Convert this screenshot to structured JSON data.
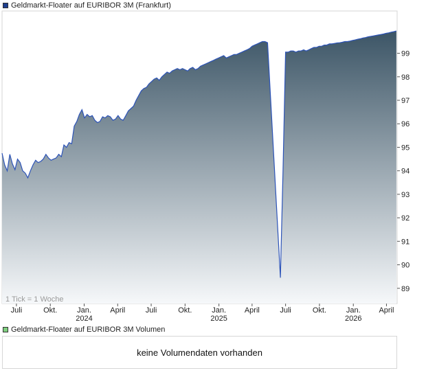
{
  "chart_data": {
    "type": "area",
    "title": "Geldmarkt-Floater auf EURIBOR 3M (Frankfurt)",
    "legend_color": "#1f3f8f",
    "line_color": "#2c53b8",
    "fill_top_color": "#3c5566",
    "fill_bottom_color": "#f6f8fa",
    "ylim": [
      88.35,
      100.8
    ],
    "y_ticks": [
      89,
      90,
      91,
      92,
      93,
      94,
      95,
      96,
      97,
      98,
      99
    ],
    "y_tick_labels": [
      "89",
      "90",
      "91",
      "92",
      "93",
      "94",
      "95",
      "96",
      "97",
      "98",
      "99"
    ],
    "xlim": [
      "2023-05-23",
      "2026-04-30"
    ],
    "x_ticks": [
      {
        "date": "2023-07-01",
        "label": "Juli",
        "year": ""
      },
      {
        "date": "2023-10-01",
        "label": "Okt.",
        "year": ""
      },
      {
        "date": "2024-01-01",
        "label": "Jan.",
        "year": "2024"
      },
      {
        "date": "2024-04-01",
        "label": "April",
        "year": ""
      },
      {
        "date": "2024-07-01",
        "label": "Juli",
        "year": ""
      },
      {
        "date": "2024-10-01",
        "label": "Okt.",
        "year": ""
      },
      {
        "date": "2025-01-01",
        "label": "Jan.",
        "year": "2025"
      },
      {
        "date": "2025-04-01",
        "label": "April",
        "year": ""
      },
      {
        "date": "2025-07-01",
        "label": "Juli",
        "year": ""
      },
      {
        "date": "2025-10-01",
        "label": "Okt.",
        "year": ""
      },
      {
        "date": "2026-01-01",
        "label": "Jan.",
        "year": "2026"
      },
      {
        "date": "2026-04-01",
        "label": "April",
        "year": ""
      }
    ],
    "note": "1 Tick = 1 Woche",
    "series": [
      {
        "name": "Geldmarkt-Floater auf EURIBOR 3M (Frankfurt)",
        "points": [
          [
            "2023-05-23",
            94.75
          ],
          [
            "2023-05-30",
            94.25
          ],
          [
            "2023-06-06",
            94.0
          ],
          [
            "2023-06-13",
            94.7
          ],
          [
            "2023-06-20",
            94.3
          ],
          [
            "2023-06-27",
            94.05
          ],
          [
            "2023-07-04",
            94.5
          ],
          [
            "2023-07-11",
            94.35
          ],
          [
            "2023-07-18",
            94.0
          ],
          [
            "2023-07-25",
            93.9
          ],
          [
            "2023-08-01",
            93.7
          ],
          [
            "2023-08-08",
            94.0
          ],
          [
            "2023-08-15",
            94.25
          ],
          [
            "2023-08-22",
            94.45
          ],
          [
            "2023-08-29",
            94.35
          ],
          [
            "2023-09-05",
            94.4
          ],
          [
            "2023-09-12",
            94.5
          ],
          [
            "2023-09-19",
            94.7
          ],
          [
            "2023-09-26",
            94.55
          ],
          [
            "2023-10-03",
            94.45
          ],
          [
            "2023-10-10",
            94.5
          ],
          [
            "2023-10-17",
            94.55
          ],
          [
            "2023-10-24",
            94.7
          ],
          [
            "2023-10-31",
            94.6
          ],
          [
            "2023-11-07",
            95.1
          ],
          [
            "2023-11-14",
            95.0
          ],
          [
            "2023-11-21",
            95.2
          ],
          [
            "2023-11-28",
            95.15
          ],
          [
            "2023-12-05",
            95.9
          ],
          [
            "2023-12-12",
            96.1
          ],
          [
            "2023-12-19",
            96.4
          ],
          [
            "2023-12-26",
            96.6
          ],
          [
            "2024-01-02",
            96.25
          ],
          [
            "2024-01-09",
            96.4
          ],
          [
            "2024-01-16",
            96.3
          ],
          [
            "2024-01-23",
            96.35
          ],
          [
            "2024-01-30",
            96.15
          ],
          [
            "2024-02-06",
            96.05
          ],
          [
            "2024-02-13",
            96.1
          ],
          [
            "2024-02-20",
            96.3
          ],
          [
            "2024-02-27",
            96.25
          ],
          [
            "2024-03-05",
            96.35
          ],
          [
            "2024-03-12",
            96.3
          ],
          [
            "2024-03-19",
            96.15
          ],
          [
            "2024-03-26",
            96.2
          ],
          [
            "2024-04-02",
            96.35
          ],
          [
            "2024-04-09",
            96.2
          ],
          [
            "2024-04-16",
            96.15
          ],
          [
            "2024-04-23",
            96.35
          ],
          [
            "2024-04-30",
            96.55
          ],
          [
            "2024-05-07",
            96.65
          ],
          [
            "2024-05-14",
            96.75
          ],
          [
            "2024-05-21",
            97.0
          ],
          [
            "2024-05-28",
            97.2
          ],
          [
            "2024-06-04",
            97.4
          ],
          [
            "2024-06-11",
            97.5
          ],
          [
            "2024-06-18",
            97.55
          ],
          [
            "2024-06-25",
            97.7
          ],
          [
            "2024-07-02",
            97.8
          ],
          [
            "2024-07-09",
            97.9
          ],
          [
            "2024-07-16",
            97.95
          ],
          [
            "2024-07-23",
            97.85
          ],
          [
            "2024-07-30",
            98.0
          ],
          [
            "2024-08-06",
            98.1
          ],
          [
            "2024-08-13",
            98.2
          ],
          [
            "2024-08-20",
            98.15
          ],
          [
            "2024-08-27",
            98.25
          ],
          [
            "2024-09-03",
            98.3
          ],
          [
            "2024-09-10",
            98.35
          ],
          [
            "2024-09-17",
            98.3
          ],
          [
            "2024-09-24",
            98.35
          ],
          [
            "2024-10-01",
            98.3
          ],
          [
            "2024-10-08",
            98.25
          ],
          [
            "2024-10-15",
            98.35
          ],
          [
            "2024-10-22",
            98.4
          ],
          [
            "2024-10-29",
            98.3
          ],
          [
            "2024-11-05",
            98.35
          ],
          [
            "2024-11-12",
            98.45
          ],
          [
            "2024-11-19",
            98.5
          ],
          [
            "2024-11-26",
            98.55
          ],
          [
            "2024-12-03",
            98.6
          ],
          [
            "2024-12-10",
            98.65
          ],
          [
            "2024-12-17",
            98.7
          ],
          [
            "2024-12-24",
            98.75
          ],
          [
            "2024-12-31",
            98.8
          ],
          [
            "2025-01-07",
            98.85
          ],
          [
            "2025-01-14",
            98.9
          ],
          [
            "2025-01-21",
            98.8
          ],
          [
            "2025-01-28",
            98.85
          ],
          [
            "2025-02-04",
            98.9
          ],
          [
            "2025-02-11",
            98.95
          ],
          [
            "2025-02-18",
            98.95
          ],
          [
            "2025-02-25",
            99.0
          ],
          [
            "2025-03-04",
            99.05
          ],
          [
            "2025-03-11",
            99.1
          ],
          [
            "2025-03-18",
            99.15
          ],
          [
            "2025-03-25",
            99.2
          ],
          [
            "2025-04-01",
            99.3
          ],
          [
            "2025-04-08",
            99.35
          ],
          [
            "2025-04-15",
            99.4
          ],
          [
            "2025-04-22",
            99.45
          ],
          [
            "2025-04-29",
            99.5
          ],
          [
            "2025-05-06",
            99.5
          ],
          [
            "2025-05-13",
            99.45
          ],
          [
            "2025-06-17",
            89.45
          ],
          [
            "2025-06-24",
            94.0
          ],
          [
            "2025-07-01",
            99.05
          ],
          [
            "2025-07-08",
            99.05
          ],
          [
            "2025-07-15",
            99.1
          ],
          [
            "2025-07-22",
            99.1
          ],
          [
            "2025-07-29",
            99.05
          ],
          [
            "2025-08-05",
            99.1
          ],
          [
            "2025-08-12",
            99.1
          ],
          [
            "2025-08-19",
            99.15
          ],
          [
            "2025-08-26",
            99.1
          ],
          [
            "2025-09-02",
            99.15
          ],
          [
            "2025-09-09",
            99.2
          ],
          [
            "2025-09-16",
            99.25
          ],
          [
            "2025-09-23",
            99.25
          ],
          [
            "2025-09-30",
            99.3
          ],
          [
            "2025-10-07",
            99.3
          ],
          [
            "2025-10-14",
            99.35
          ],
          [
            "2025-10-21",
            99.35
          ],
          [
            "2025-10-28",
            99.4
          ],
          [
            "2025-11-04",
            99.4
          ],
          [
            "2025-11-11",
            99.42
          ],
          [
            "2025-11-18",
            99.44
          ],
          [
            "2025-11-25",
            99.45
          ],
          [
            "2025-12-02",
            99.47
          ],
          [
            "2025-12-09",
            99.5
          ],
          [
            "2025-12-16",
            99.5
          ],
          [
            "2025-12-23",
            99.52
          ],
          [
            "2025-12-30",
            99.55
          ],
          [
            "2026-01-06",
            99.57
          ],
          [
            "2026-01-13",
            99.6
          ],
          [
            "2026-01-20",
            99.62
          ],
          [
            "2026-01-27",
            99.65
          ],
          [
            "2026-02-03",
            99.67
          ],
          [
            "2026-02-10",
            99.7
          ],
          [
            "2026-02-17",
            99.72
          ],
          [
            "2026-02-24",
            99.74
          ],
          [
            "2026-03-03",
            99.76
          ],
          [
            "2026-03-10",
            99.78
          ],
          [
            "2026-03-17",
            99.8
          ],
          [
            "2026-03-24",
            99.82
          ],
          [
            "2026-03-31",
            99.85
          ],
          [
            "2026-04-07",
            99.87
          ],
          [
            "2026-04-14",
            99.9
          ],
          [
            "2026-04-21",
            99.92
          ],
          [
            "2026-04-28",
            99.95
          ]
        ]
      }
    ]
  },
  "volume": {
    "title": "Geldmarkt-Floater auf EURIBOR 3M Volumen",
    "legend_color": "#7fcf7f",
    "message": "keine Volumendaten vorhanden"
  }
}
